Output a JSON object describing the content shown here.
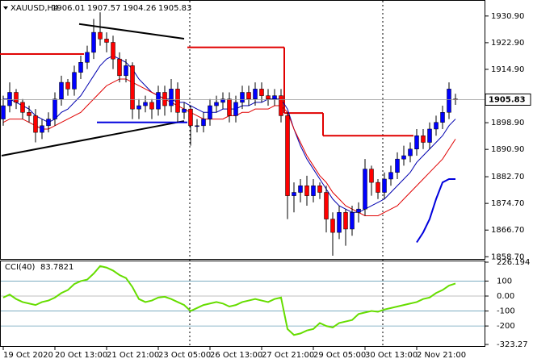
{
  "chart_data": {
    "type": "candlestick",
    "symbol": "XAUUSD,H4",
    "open": [
      1900,
      1904,
      1908,
      1905,
      1902,
      1901,
      1896,
      1898,
      1900,
      1906,
      1911,
      1909,
      1914,
      1917,
      1920,
      1926,
      1924,
      1923,
      1918,
      1913,
      1916,
      1903,
      1904,
      1905,
      1903,
      1908,
      1904,
      1909,
      1902,
      1903,
      1898,
      1898,
      1900,
      1904,
      1905,
      1906,
      1901,
      1905,
      1908,
      1906,
      1909,
      1907,
      1906,
      1907,
      1901,
      1877,
      1878,
      1880,
      1877,
      1880,
      1878,
      1870,
      1866,
      1872,
      1867,
      1872,
      1873,
      1885,
      1881,
      1878,
      1882,
      1884,
      1888,
      1889,
      1891,
      1895,
      1893,
      1897,
      1899,
      1902,
      1906.01
    ],
    "high": [
      1907,
      1911,
      1909,
      1906,
      1904,
      1903,
      1900,
      1902,
      1908,
      1913,
      1912,
      1916,
      1919,
      1922,
      1930,
      1932,
      1926,
      1925,
      1920,
      1918,
      1917,
      1906,
      1907,
      1906,
      1910,
      1910,
      1912,
      1911,
      1905,
      1904,
      1900,
      1902,
      1906,
      1907,
      1908,
      1908,
      1907,
      1910,
      1910,
      1911,
      1911,
      1909,
      1909,
      1909,
      1902,
      1881,
      1882,
      1883,
      1882,
      1881,
      1880,
      1872,
      1874,
      1873,
      1874,
      1875,
      1888,
      1886,
      1882,
      1884,
      1886,
      1890,
      1892,
      1893,
      1897,
      1897,
      1899,
      1901,
      1904,
      1911,
      1907.57
    ],
    "low": [
      1898,
      1902,
      1903,
      1900,
      1899,
      1893,
      1894,
      1896,
      1898,
      1904,
      1907,
      1907,
      1912,
      1915,
      1918,
      1922,
      1920,
      1915,
      1911,
      1911,
      1900,
      1900,
      1902,
      1900,
      1901,
      1901,
      1902,
      1899,
      1900,
      1892,
      1896,
      1896,
      1898,
      1902,
      1903,
      1899,
      1899,
      1903,
      1904,
      1904,
      1905,
      1904,
      1904,
      1899,
      1870,
      1872,
      1875,
      1874,
      1875,
      1876,
      1866,
      1859,
      1864,
      1862,
      1865,
      1869,
      1871,
      1877,
      1876,
      1876,
      1880,
      1882,
      1886,
      1887,
      1889,
      1891,
      1891,
      1895,
      1897,
      1900,
      1904.26
    ],
    "close": [
      1904,
      1908,
      1905,
      1902,
      1901,
      1896,
      1898,
      1900,
      1906,
      1911,
      1909,
      1914,
      1917,
      1920,
      1926,
      1924,
      1923,
      1918,
      1913,
      1916,
      1903,
      1904,
      1905,
      1903,
      1908,
      1904,
      1909,
      1902,
      1903,
      1898,
      1898,
      1900,
      1904,
      1905,
      1906,
      1901,
      1905,
      1908,
      1906,
      1909,
      1907,
      1906,
      1907,
      1901,
      1877,
      1878,
      1880,
      1877,
      1880,
      1878,
      1870,
      1866,
      1872,
      1867,
      1872,
      1873,
      1885,
      1881,
      1878,
      1882,
      1884,
      1888,
      1889,
      1891,
      1895,
      1893,
      1897,
      1899,
      1902,
      1909,
      1905.83
    ],
    "up_color": "#0000ff",
    "down_color": "#ff0000",
    "moving_averages": [
      {
        "color": "#0000b0",
        "values": [
          1906,
          1906,
          1905,
          1904,
          1903,
          1901,
          1900,
          1899,
          1900,
          1902,
          1903,
          1905,
          1907,
          1910,
          1913,
          1916,
          1918,
          1919,
          1918,
          1917,
          1915,
          1912,
          1910,
          1908,
          1907,
          1906,
          1906,
          1905,
          1905,
          1904,
          1903,
          1902,
          1902,
          1902,
          1903,
          1903,
          1903,
          1904,
          1904,
          1905,
          1905,
          1906,
          1906,
          1906,
          1903,
          1897,
          1892,
          1888,
          1885,
          1882,
          1879,
          1876,
          1874,
          1873,
          1872,
          1872,
          1873,
          1874,
          1875,
          1876,
          1878,
          1880,
          1882,
          1884,
          1887,
          1889,
          1891,
          1893,
          1895,
          1898,
          1900
        ]
      },
      {
        "color": "#e00000",
        "values": [
          1899,
          1900,
          1900,
          1900,
          1899,
          1898,
          1897,
          1897,
          1898,
          1899,
          1900,
          1901,
          1902,
          1904,
          1906,
          1908,
          1910,
          1911,
          1912,
          1912,
          1911,
          1910,
          1909,
          1908,
          1907,
          1906,
          1905,
          1904,
          1903,
          1902,
          1901,
          1900,
          1900,
          1900,
          1900,
          1901,
          1901,
          1902,
          1902,
          1903,
          1903,
          1903,
          1904,
          1904,
          1902,
          1897,
          1893,
          1889,
          1886,
          1883,
          1881,
          1878,
          1876,
          1874,
          1873,
          1872,
          1871,
          1871,
          1871,
          1872,
          1873,
          1874,
          1876,
          1878,
          1880,
          1882,
          1884,
          1886,
          1888,
          1891,
          1894
        ]
      }
    ],
    "steps": [
      {
        "color": "#e00000",
        "values": [
          1919.5,
          1919.5,
          1919.5,
          1919.5,
          1919.5,
          1919.5,
          1919.5,
          1919.5,
          1919.5,
          1919.5,
          1919.5,
          1919.5,
          1919.5,
          null,
          null,
          null,
          null,
          null,
          null,
          null,
          null,
          null,
          null,
          null,
          null,
          null,
          null,
          null,
          null,
          1921.5,
          1921.5,
          1921.5,
          1921.5,
          1921.5,
          1921.5,
          1921.5,
          1921.5,
          1921.5,
          1921.5,
          1921.5,
          1921.5,
          1921.5,
          1921.5,
          1921.5,
          1901.8,
          1901.8,
          1901.8,
          1901.8,
          1901.8,
          1901.8,
          1895,
          1895,
          1895,
          1895,
          1895,
          1895,
          1895,
          1895,
          1895,
          1895,
          1895,
          1895,
          1895,
          1895,
          null,
          null,
          null,
          null,
          null,
          null,
          null
        ]
      },
      {
        "color": "#0000dd",
        "values": [
          null,
          null,
          null,
          null,
          null,
          null,
          null,
          null,
          null,
          null,
          null,
          null,
          null,
          null,
          null,
          1899,
          1899,
          1899,
          1899,
          1899,
          1899,
          1899,
          1899,
          1899,
          1899,
          1899,
          1899,
          1899,
          1899,
          null,
          null,
          null,
          null,
          null,
          null,
          null,
          null,
          null,
          null,
          null,
          null,
          null,
          null,
          null,
          null,
          null,
          null,
          null,
          null,
          null,
          null,
          null,
          null,
          null,
          null,
          null,
          null,
          null,
          null,
          null,
          null,
          null,
          null,
          null,
          null,
          null,
          null,
          null,
          null,
          null,
          null
        ]
      }
    ],
    "blue_line": {
      "color": "#0000dd",
      "values": [
        null,
        null,
        null,
        null,
        null,
        null,
        null,
        null,
        null,
        null,
        null,
        null,
        null,
        null,
        null,
        null,
        null,
        null,
        null,
        null,
        null,
        null,
        null,
        null,
        null,
        null,
        null,
        null,
        null,
        null,
        null,
        null,
        null,
        null,
        null,
        null,
        null,
        null,
        null,
        null,
        null,
        null,
        null,
        null,
        null,
        null,
        null,
        null,
        null,
        null,
        null,
        null,
        null,
        null,
        null,
        null,
        null,
        null,
        null,
        null,
        null,
        null,
        null,
        null,
        1863,
        1866,
        1870,
        1876,
        1881,
        1882,
        1882
      ]
    },
    "trendlines": [
      {
        "x": [
          0,
          28
        ],
        "y": [
          1889,
          1899.4
        ]
      },
      {
        "x": [
          12,
          28
        ],
        "y": [
          1928.5,
          1924.1
        ]
      }
    ],
    "ylim": [
      1857.8,
      1935.7
    ],
    "yticks": [
      {
        "value": 1930.9,
        "label": "1930.90"
      },
      {
        "value": 1922.9,
        "label": "1922.90"
      },
      {
        "value": 1914.9,
        "label": "1914.90"
      },
      {
        "value": 1898.9,
        "label": "1898.90"
      },
      {
        "value": 1890.9,
        "label": "1890.90"
      },
      {
        "value": 1882.7,
        "label": "1882.70"
      },
      {
        "value": 1874.7,
        "label": "1874.70"
      },
      {
        "value": 1866.7,
        "label": "1866.70"
      },
      {
        "value": 1858.7,
        "label": "1858.70"
      }
    ],
    "x_labels": [
      "19 Oct 2020",
      "20 Oct 13:00",
      "21 Oct 21:00",
      "23 Oct 05:00",
      "26 Oct 13:00",
      "27 Oct 21:00",
      "29 Oct 05:00",
      "30 Oct 13:00",
      "2 Nov 21:00"
    ],
    "cci": {
      "label": "CCI(40)",
      "color": "#66dd00",
      "values": [
        -10,
        10,
        -20,
        -40,
        -50,
        -60,
        -40,
        -30,
        -10,
        20,
        40,
        80,
        100,
        110,
        150,
        200,
        190,
        170,
        140,
        120,
        60,
        -20,
        -40,
        -30,
        -10,
        -5,
        -20,
        -40,
        -60,
        -100,
        -80,
        -60,
        -50,
        -40,
        -50,
        -70,
        -60,
        -40,
        -30,
        -20,
        -30,
        -40,
        -20,
        -10,
        -220,
        -260,
        -250,
        -230,
        -220,
        -180,
        -200,
        -210,
        -180,
        -170,
        -160,
        -120,
        -110,
        -100,
        -105,
        -90,
        -80,
        -70,
        -60,
        -50,
        -40,
        -20,
        -10,
        20,
        40,
        70,
        83.7821
      ],
      "ylim": [
        -323.27,
        226.194
      ],
      "yticks": [
        226.194,
        100,
        {
          "value": 0,
          "label": "0.00"
        },
        -100,
        -200,
        -323.27
      ]
    }
  }
}
